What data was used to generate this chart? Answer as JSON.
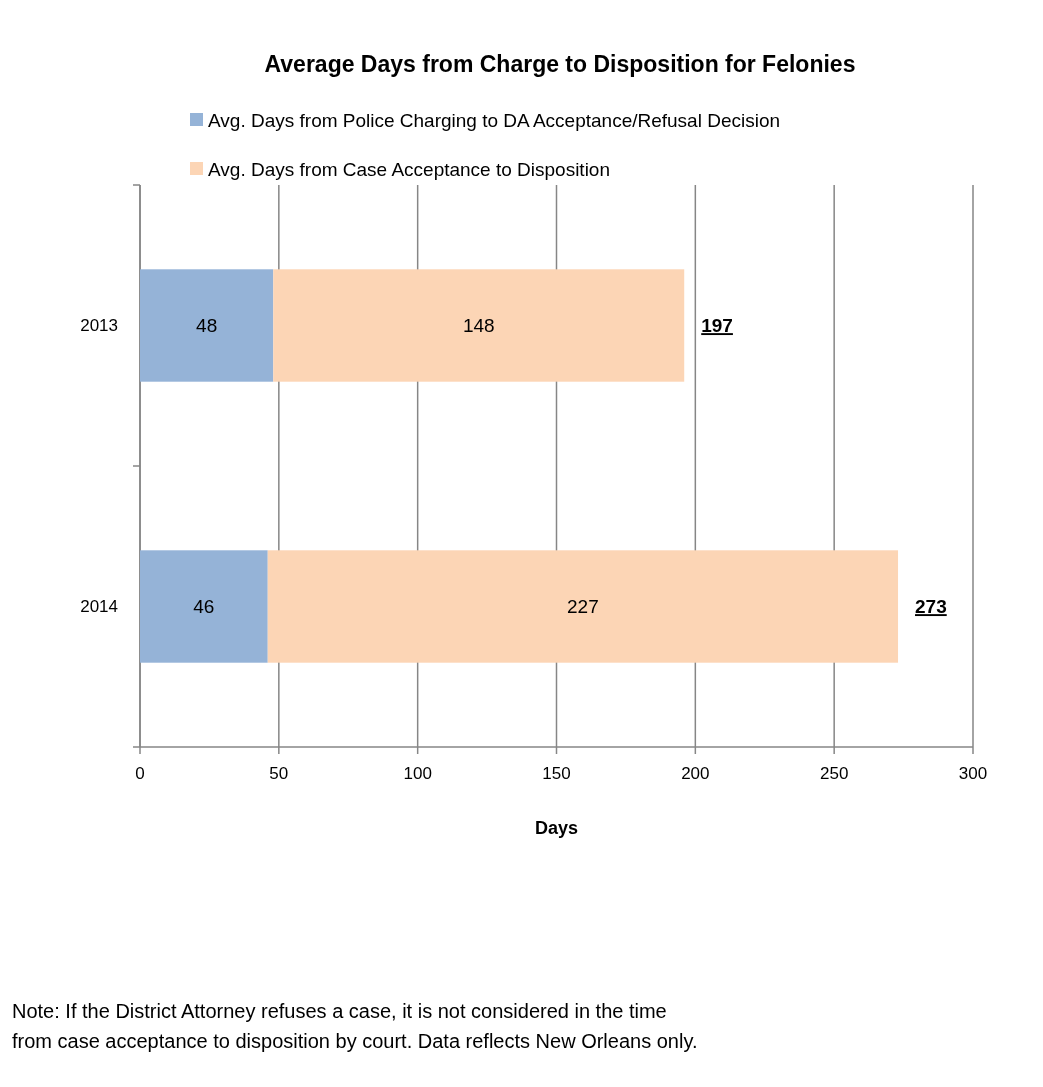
{
  "chart_data": {
    "type": "bar",
    "orientation": "horizontal",
    "stacked": true,
    "title": "Average Days from Charge to Disposition for Felonies",
    "xlabel": "Days",
    "categories": [
      "2013",
      "2014"
    ],
    "series": [
      {
        "name": "Avg. Days from Police Charging to DA Acceptance/Refusal Decision",
        "color": "#95b3d7",
        "values": [
          48,
          46
        ]
      },
      {
        "name": "Avg. Days from Case Acceptance to Disposition",
        "color": "#fcd5b5",
        "values": [
          148,
          227
        ]
      }
    ],
    "data_labels": true,
    "totals": [
      "197",
      "273"
    ],
    "xlim": [
      0,
      300
    ],
    "xticks": [
      0,
      50,
      100,
      150,
      200,
      250,
      300
    ],
    "grid": "x",
    "legend": "top",
    "annotations": [
      "Note: If the District Attorney refuses a case, it is not considered in the time from case acceptance to disposition by court.  Data reflects New Orleans only."
    ]
  }
}
